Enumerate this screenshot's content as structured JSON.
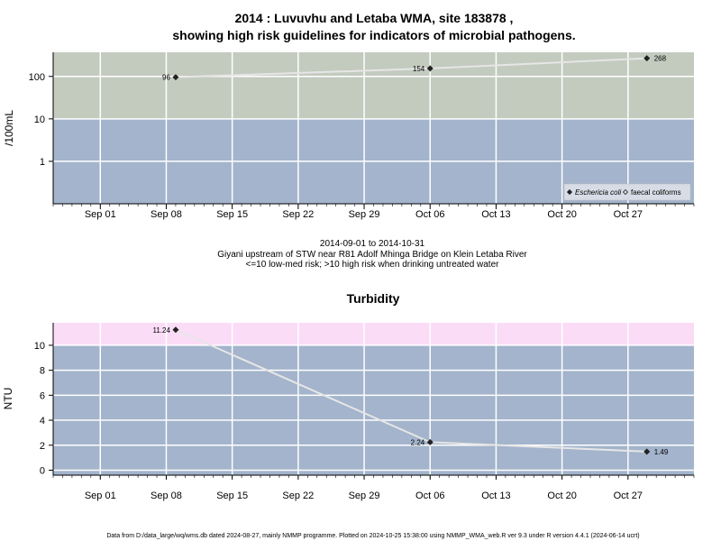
{
  "page": {
    "title_line1": "2014 : Luvuvhu and Letaba WMA, site 183878 ,",
    "title_line2": "showing high risk guidelines for indicators of microbial pathogens.",
    "subtitle_lines": [
      "2014-09-01 to 2014-10-31",
      "Giyani upstream of STW near R81 Adolf Mhinga Bridge on Klein Letaba River",
      "<=10 low-med risk; >10 high risk when drinking untreated water"
    ],
    "footer": "Data from D:/data_large/wq/wms.db dated 2024-08-27, mainly NMMP programme. Plotted on 2024-10-25 15:38:00 using NMMP_WMA_web.R ver 9.3 under R version 4.4.1 (2024-06-14 ucrt)"
  },
  "colors": {
    "high_risk_top": "#c3cbbf",
    "low_risk_top": "#a3b4cc",
    "high_risk_bottom": "#fbdcf7",
    "low_risk_bottom": "#a3b4cc",
    "grid": "#ffffff",
    "line": "#e6e6e6",
    "marker": "#222222"
  },
  "chart_data": [
    {
      "type": "line",
      "title": "",
      "ylabel": "/100mL",
      "yscale": "log",
      "x_range": [
        "2014-08-27",
        "2014-11-03"
      ],
      "y_range": [
        0.1,
        370
      ],
      "y_ticks": [
        1,
        10,
        100
      ],
      "y_tick_labels": [
        "1",
        "10",
        "100"
      ],
      "x_ticks": [
        "2014-09-01",
        "2014-09-08",
        "2014-09-15",
        "2014-09-22",
        "2014-09-29",
        "2014-10-06",
        "2014-10-13",
        "2014-10-20",
        "2014-10-27"
      ],
      "x_tick_labels": [
        "Sep 01",
        "Sep 08",
        "Sep 15",
        "Sep 22",
        "Sep 29",
        "Oct 06",
        "Oct 13",
        "Oct 20",
        "Oct 27"
      ],
      "threshold": 10,
      "grid": true,
      "legend_position": "bottom-right",
      "series": [
        {
          "name": "Eschericia coli",
          "marker": "filled-diamond",
          "x": [
            "2014-09-09",
            "2014-10-06",
            "2014-10-29"
          ],
          "values": [
            96,
            154,
            268
          ],
          "labels": [
            "96",
            "154",
            "268"
          ]
        },
        {
          "name": "faecal coliforms",
          "marker": "open-diamond",
          "x": [],
          "values": []
        }
      ]
    },
    {
      "type": "line",
      "title": "Turbidity",
      "ylabel": "NTU",
      "yscale": "linear",
      "x_range": [
        "2014-08-27",
        "2014-11-03"
      ],
      "y_range": [
        -0.4,
        11.8
      ],
      "y_ticks": [
        0,
        2,
        4,
        6,
        8,
        10
      ],
      "y_tick_labels": [
        "0",
        "2",
        "4",
        "6",
        "8",
        "10"
      ],
      "x_ticks": [
        "2014-09-01",
        "2014-09-08",
        "2014-09-15",
        "2014-09-22",
        "2014-09-29",
        "2014-10-06",
        "2014-10-13",
        "2014-10-20",
        "2014-10-27"
      ],
      "x_tick_labels": [
        "Sep 01",
        "Sep 08",
        "Sep 15",
        "Sep 22",
        "Sep 29",
        "Oct 06",
        "Oct 13",
        "Oct 20",
        "Oct 27"
      ],
      "threshold": 10,
      "grid": true,
      "series": [
        {
          "name": "",
          "marker": "filled-diamond",
          "x": [
            "2014-09-09",
            "2014-10-06",
            "2014-10-29"
          ],
          "values": [
            11.24,
            2.24,
            1.49
          ],
          "labels": [
            "11.24",
            "2.24",
            "1.49"
          ]
        }
      ]
    }
  ]
}
